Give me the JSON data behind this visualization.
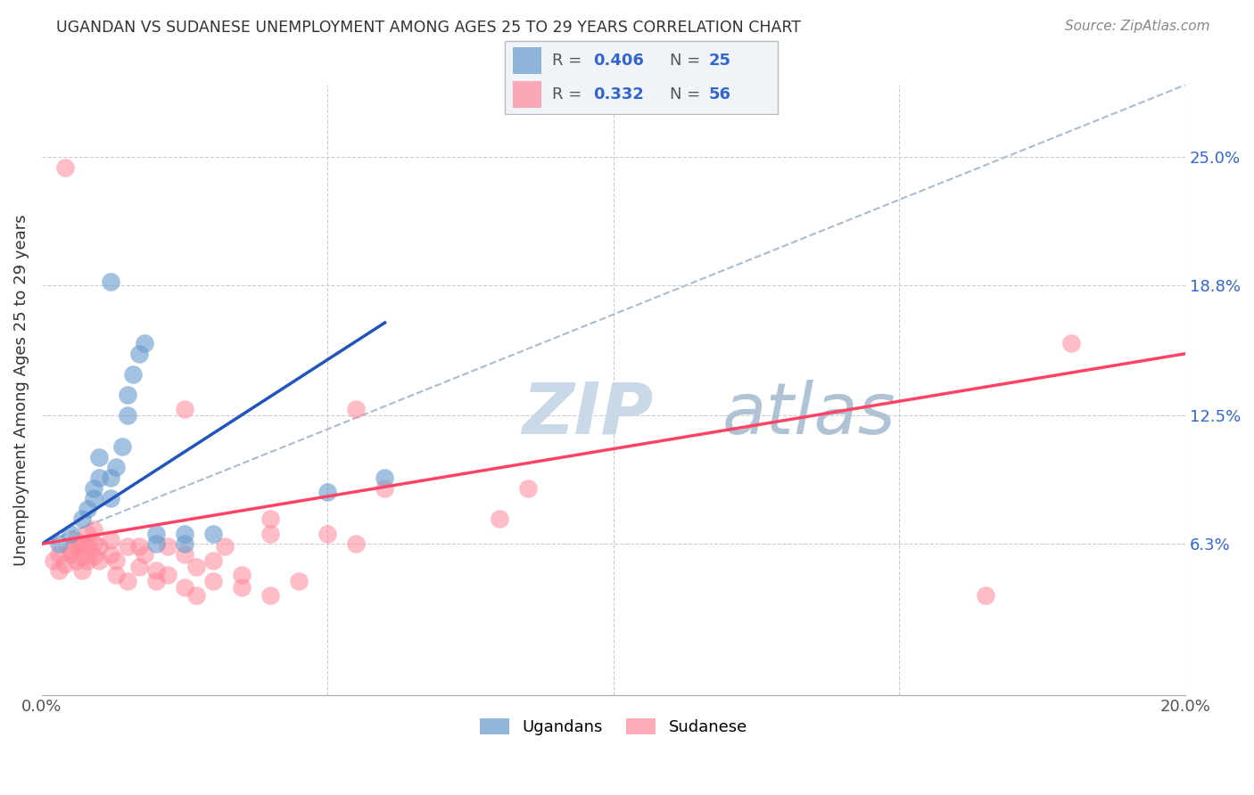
{
  "title": "UGANDAN VS SUDANESE UNEMPLOYMENT AMONG AGES 25 TO 29 YEARS CORRELATION CHART",
  "source": "Source: ZipAtlas.com",
  "ylabel": "Unemployment Among Ages 25 to 29 years",
  "xlim": [
    0.0,
    0.2
  ],
  "ylim": [
    -0.01,
    0.285
  ],
  "yticks": [
    0.063,
    0.125,
    0.188,
    0.25
  ],
  "ytick_labels": [
    "6.3%",
    "12.5%",
    "18.8%",
    "25.0%"
  ],
  "xticks": [
    0.0,
    0.05,
    0.1,
    0.15,
    0.2
  ],
  "xtick_labels": [
    "0.0%",
    "",
    "",
    "",
    "20.0%"
  ],
  "ugandan_R": "0.406",
  "ugandan_N": "25",
  "sudanese_R": "0.332",
  "sudanese_N": "56",
  "ugandan_color": "#6699CC",
  "sudanese_color": "#FF8899",
  "ugandan_scatter": [
    [
      0.003,
      0.063
    ],
    [
      0.005,
      0.068
    ],
    [
      0.007,
      0.075
    ],
    [
      0.008,
      0.08
    ],
    [
      0.009,
      0.085
    ],
    [
      0.009,
      0.09
    ],
    [
      0.01,
      0.095
    ],
    [
      0.01,
      0.105
    ],
    [
      0.012,
      0.085
    ],
    [
      0.012,
      0.095
    ],
    [
      0.013,
      0.1
    ],
    [
      0.014,
      0.11
    ],
    [
      0.015,
      0.125
    ],
    [
      0.015,
      0.135
    ],
    [
      0.016,
      0.145
    ],
    [
      0.017,
      0.155
    ],
    [
      0.018,
      0.16
    ],
    [
      0.02,
      0.063
    ],
    [
      0.02,
      0.068
    ],
    [
      0.025,
      0.063
    ],
    [
      0.025,
      0.068
    ],
    [
      0.03,
      0.068
    ],
    [
      0.05,
      0.088
    ],
    [
      0.06,
      0.095
    ],
    [
      0.012,
      0.19
    ]
  ],
  "sudanese_scatter": [
    [
      0.002,
      0.055
    ],
    [
      0.003,
      0.058
    ],
    [
      0.003,
      0.05
    ],
    [
      0.004,
      0.053
    ],
    [
      0.005,
      0.06
    ],
    [
      0.005,
      0.058
    ],
    [
      0.006,
      0.065
    ],
    [
      0.006,
      0.055
    ],
    [
      0.006,
      0.062
    ],
    [
      0.007,
      0.05
    ],
    [
      0.007,
      0.057
    ],
    [
      0.007,
      0.063
    ],
    [
      0.008,
      0.055
    ],
    [
      0.008,
      0.062
    ],
    [
      0.008,
      0.068
    ],
    [
      0.009,
      0.057
    ],
    [
      0.009,
      0.063
    ],
    [
      0.009,
      0.07
    ],
    [
      0.01,
      0.062
    ],
    [
      0.01,
      0.055
    ],
    [
      0.012,
      0.065
    ],
    [
      0.012,
      0.058
    ],
    [
      0.013,
      0.048
    ],
    [
      0.013,
      0.055
    ],
    [
      0.015,
      0.062
    ],
    [
      0.015,
      0.045
    ],
    [
      0.017,
      0.062
    ],
    [
      0.017,
      0.052
    ],
    [
      0.018,
      0.058
    ],
    [
      0.02,
      0.05
    ],
    [
      0.02,
      0.045
    ],
    [
      0.022,
      0.062
    ],
    [
      0.022,
      0.048
    ],
    [
      0.025,
      0.058
    ],
    [
      0.025,
      0.042
    ],
    [
      0.027,
      0.038
    ],
    [
      0.027,
      0.052
    ],
    [
      0.03,
      0.045
    ],
    [
      0.03,
      0.055
    ],
    [
      0.032,
      0.062
    ],
    [
      0.035,
      0.048
    ],
    [
      0.035,
      0.042
    ],
    [
      0.04,
      0.068
    ],
    [
      0.04,
      0.075
    ],
    [
      0.04,
      0.038
    ],
    [
      0.045,
      0.045
    ],
    [
      0.05,
      0.068
    ],
    [
      0.055,
      0.063
    ],
    [
      0.06,
      0.09
    ],
    [
      0.08,
      0.075
    ],
    [
      0.085,
      0.09
    ],
    [
      0.004,
      0.245
    ],
    [
      0.025,
      0.128
    ],
    [
      0.055,
      0.128
    ],
    [
      0.165,
      0.038
    ],
    [
      0.18,
      0.16
    ]
  ],
  "ugandan_trendline": [
    [
      0.0,
      0.063
    ],
    [
      0.06,
      0.17
    ]
  ],
  "ugandan_trendline_dashed": [
    [
      0.0,
      0.063
    ],
    [
      0.2,
      0.285
    ]
  ],
  "sudanese_trendline": [
    [
      0.0,
      0.063
    ],
    [
      0.2,
      0.155
    ]
  ],
  "background_color": "#ffffff",
  "grid_color": "#cccccc",
  "watermark_zip": "ZIP",
  "watermark_atlas": "atlas",
  "watermark_color_zip": "#c8d8e8",
  "watermark_color_atlas": "#b0c8d8"
}
